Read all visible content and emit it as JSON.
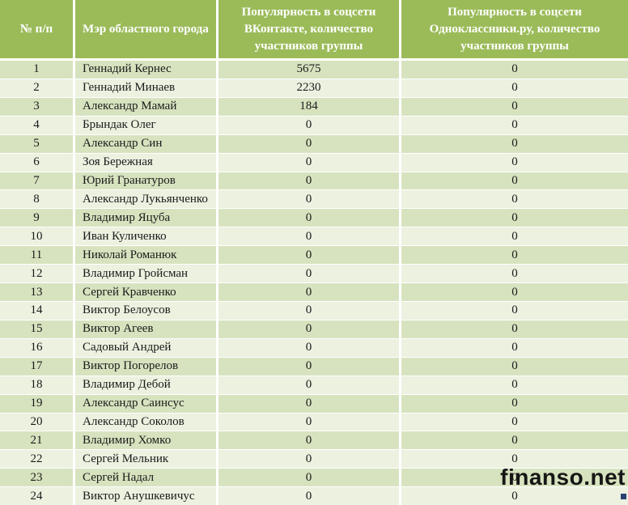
{
  "colors": {
    "header_bg": "#9bbb59",
    "row_odd_bg": "#d7e3bf",
    "row_even_bg": "#ecf1e0",
    "grid_border": "#ffffff",
    "header_text": "#ffffff",
    "body_text": "#1a1a1a",
    "watermark_text": "#161616",
    "corner_square": "#2b4170"
  },
  "table": {
    "columns": [
      {
        "key": "n",
        "label": "№ п/п"
      },
      {
        "key": "name",
        "label": "Мэр областного города"
      },
      {
        "key": "vk",
        "label": "Популярность в соцсети ВКонтакте, количество участников группы"
      },
      {
        "key": "ok",
        "label": "Популярность в соцсети Одноклассники.ру, количество участников группы"
      }
    ],
    "rows": [
      {
        "n": "1",
        "name": "Геннадий Кернес",
        "vk": "5675",
        "ok": "0"
      },
      {
        "n": "2",
        "name": "Геннадий Минаев",
        "vk": "2230",
        "ok": "0"
      },
      {
        "n": "3",
        "name": "Александр Мамай",
        "vk": "184",
        "ok": "0"
      },
      {
        "n": "4",
        "name": "Брындак Олег",
        "vk": "0",
        "ok": "0"
      },
      {
        "n": "5",
        "name": "Александр Син",
        "vk": "0",
        "ok": "0"
      },
      {
        "n": "6",
        "name": "Зоя Бережная",
        "vk": "0",
        "ok": "0"
      },
      {
        "n": "7",
        "name": "Юрий Гранатуров",
        "vk": "0",
        "ok": "0"
      },
      {
        "n": "8",
        "name": "Александр Лукьянченко",
        "vk": "0",
        "ok": "0"
      },
      {
        "n": "9",
        "name": "Владимир Яцуба",
        "vk": "0",
        "ok": "0"
      },
      {
        "n": "10",
        "name": "Иван  Куличенко",
        "vk": "0",
        "ok": "0"
      },
      {
        "n": "11",
        "name": "Николай Романюк",
        "vk": "0",
        "ok": "0"
      },
      {
        "n": "12",
        "name": "Владимир Гройсман",
        "vk": "0",
        "ok": "0"
      },
      {
        "n": "13",
        "name": "Сергей Кравченко",
        "vk": "0",
        "ok": "0"
      },
      {
        "n": "14",
        "name": "Виктор Белоусов",
        "vk": "0",
        "ok": "0"
      },
      {
        "n": "15",
        "name": "Виктор Агеев",
        "vk": "0",
        "ok": "0"
      },
      {
        "n": "16",
        "name": "Садовый Андрей",
        "vk": "0",
        "ok": "0"
      },
      {
        "n": "17",
        "name": "Виктор Погорелов",
        "vk": "0",
        "ok": "0"
      },
      {
        "n": "18",
        "name": "Владимир Дебой",
        "vk": "0",
        "ok": "0"
      },
      {
        "n": "19",
        "name": "Александр Саинсус",
        "vk": "0",
        "ok": "0"
      },
      {
        "n": "20",
        "name": "Александр Соколов",
        "vk": "0",
        "ok": "0"
      },
      {
        "n": "21",
        "name": "Владимир Хомко",
        "vk": "0",
        "ok": "0"
      },
      {
        "n": "22",
        "name": "Сергей Мельник",
        "vk": "0",
        "ok": "0"
      },
      {
        "n": "23",
        "name": "Сергей Надал",
        "vk": "0",
        "ok": "0"
      },
      {
        "n": "24",
        "name": "Виктор Анушкевичус",
        "vk": "0",
        "ok": "0"
      }
    ]
  },
  "watermark": {
    "text": "finanso.net"
  },
  "chart_data": {
    "type": "table",
    "title": "",
    "columns": [
      "№ п/п",
      "Мэр областного города",
      "Популярность в соцсети ВКонтакте, количество участников группы",
      "Популярность в соцсети Одноклассники.ру, количество участников группы"
    ],
    "vk_values": [
      5675,
      2230,
      184,
      0,
      0,
      0,
      0,
      0,
      0,
      0,
      0,
      0,
      0,
      0,
      0,
      0,
      0,
      0,
      0,
      0,
      0,
      0,
      0,
      0
    ],
    "ok_values": [
      0,
      0,
      0,
      0,
      0,
      0,
      0,
      0,
      0,
      0,
      0,
      0,
      0,
      0,
      0,
      0,
      0,
      0,
      0,
      0,
      0,
      0,
      0,
      0
    ]
  }
}
